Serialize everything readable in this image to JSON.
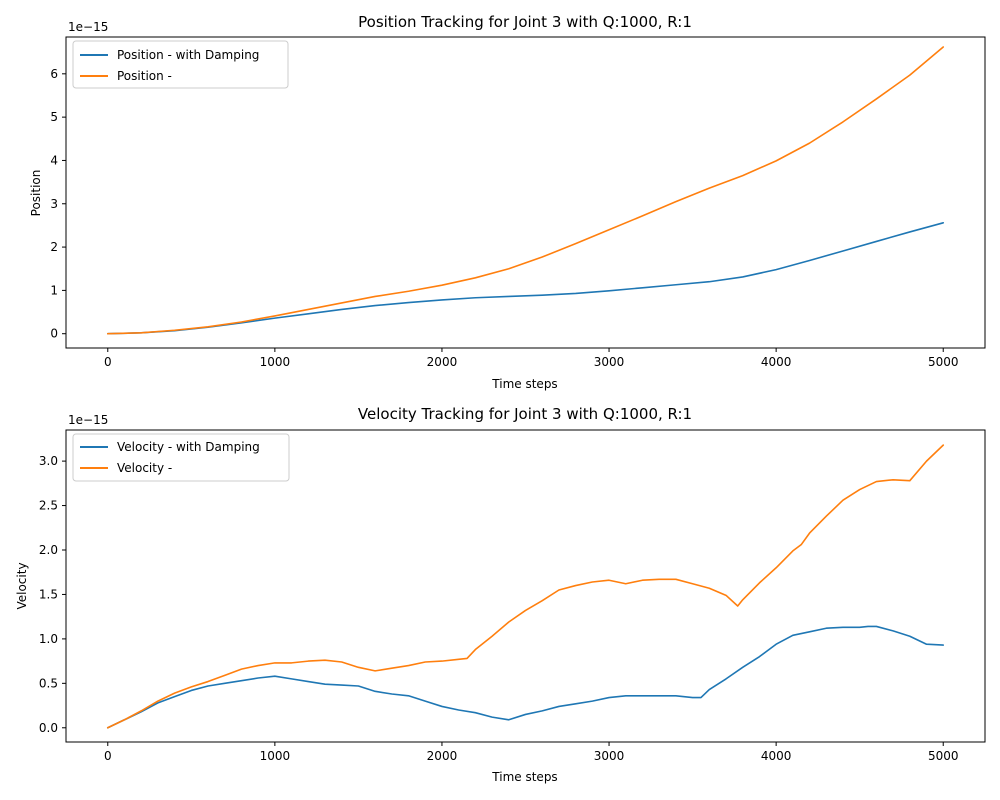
{
  "chart_data": [
    {
      "type": "line",
      "title": "Position Tracking for Joint 3 with Q:1000, R:1",
      "xlabel": "Time steps",
      "ylabel": "Position",
      "scale_label": "1e−15",
      "xlim": [
        -250,
        5250
      ],
      "ylim": [
        -0.33,
        6.85
      ],
      "xticks": [
        0,
        1000,
        2000,
        3000,
        4000,
        5000
      ],
      "yticks": [
        0,
        1,
        2,
        3,
        4,
        5,
        6
      ],
      "legend_position": "upper-left",
      "series": [
        {
          "name": "Position - with Damping",
          "color": "#1f77b4",
          "x": [
            0,
            200,
            400,
            600,
            800,
            1000,
            1200,
            1400,
            1600,
            1800,
            2000,
            2200,
            2400,
            2600,
            2800,
            3000,
            3200,
            3400,
            3600,
            3800,
            4000,
            4200,
            4400,
            4600,
            4800,
            5000
          ],
          "y": [
            0,
            0.02,
            0.07,
            0.15,
            0.25,
            0.36,
            0.46,
            0.56,
            0.65,
            0.72,
            0.78,
            0.83,
            0.86,
            0.89,
            0.93,
            0.99,
            1.06,
            1.13,
            1.2,
            1.31,
            1.48,
            1.69,
            1.91,
            2.13,
            2.35,
            2.56
          ]
        },
        {
          "name": "Position -",
          "color": "#ff7f0e",
          "x": [
            0,
            200,
            400,
            600,
            800,
            1000,
            1200,
            1400,
            1600,
            1800,
            2000,
            2200,
            2400,
            2600,
            2800,
            3000,
            3200,
            3400,
            3600,
            3800,
            4000,
            4200,
            4400,
            4600,
            4800,
            5000
          ],
          "y": [
            0,
            0.02,
            0.08,
            0.16,
            0.27,
            0.41,
            0.56,
            0.71,
            0.86,
            0.98,
            1.12,
            1.29,
            1.5,
            1.77,
            2.08,
            2.4,
            2.72,
            3.05,
            3.36,
            3.65,
            3.99,
            4.4,
            4.89,
            5.42,
            5.97,
            6.62
          ]
        }
      ]
    },
    {
      "type": "line",
      "title": "Velocity Tracking for Joint 3 with Q:1000, R:1",
      "xlabel": "Time steps",
      "ylabel": "Velocity",
      "scale_label": "1e−15",
      "xlim": [
        -250,
        5250
      ],
      "ylim": [
        -0.16,
        3.35
      ],
      "xticks": [
        0,
        1000,
        2000,
        3000,
        4000,
        5000
      ],
      "yticks": [
        0,
        0.5,
        1.0,
        1.5,
        2.0,
        2.5,
        3.0
      ],
      "ytick_labels": [
        "0.0",
        "0.5",
        "1.0",
        "1.5",
        "2.0",
        "2.5",
        "3.0"
      ],
      "legend_position": "upper-left",
      "series": [
        {
          "name": "Velocity - with Damping",
          "color": "#1f77b4",
          "x": [
            0,
            100,
            200,
            300,
            400,
            500,
            600,
            700,
            800,
            900,
            1000,
            1100,
            1200,
            1300,
            1400,
            1500,
            1600,
            1700,
            1800,
            1900,
            2000,
            2100,
            2200,
            2300,
            2400,
            2500,
            2600,
            2700,
            2800,
            2900,
            3000,
            3100,
            3200,
            3300,
            3400,
            3500,
            3550,
            3600,
            3700,
            3800,
            3900,
            4000,
            4100,
            4200,
            4300,
            4400,
            4500,
            4550,
            4600,
            4700,
            4800,
            4900,
            5000
          ],
          "y": [
            0,
            0.09,
            0.18,
            0.28,
            0.35,
            0.42,
            0.47,
            0.5,
            0.53,
            0.56,
            0.58,
            0.55,
            0.52,
            0.49,
            0.48,
            0.47,
            0.41,
            0.38,
            0.36,
            0.3,
            0.24,
            0.2,
            0.17,
            0.12,
            0.09,
            0.15,
            0.19,
            0.24,
            0.27,
            0.3,
            0.34,
            0.36,
            0.36,
            0.36,
            0.36,
            0.34,
            0.34,
            0.43,
            0.55,
            0.68,
            0.8,
            0.94,
            1.04,
            1.08,
            1.12,
            1.13,
            1.13,
            1.14,
            1.14,
            1.09,
            1.03,
            0.94,
            0.93
          ]
        },
        {
          "name": "Velocity -",
          "color": "#ff7f0e",
          "x": [
            0,
            100,
            200,
            300,
            400,
            500,
            600,
            700,
            800,
            900,
            1000,
            1100,
            1200,
            1300,
            1400,
            1500,
            1600,
            1700,
            1800,
            1900,
            2000,
            2100,
            2150,
            2200,
            2300,
            2400,
            2500,
            2600,
            2700,
            2800,
            2900,
            3000,
            3100,
            3200,
            3300,
            3400,
            3500,
            3600,
            3700,
            3770,
            3800,
            3900,
            4000,
            4100,
            4150,
            4200,
            4300,
            4400,
            4500,
            4600,
            4700,
            4800,
            4900,
            5000
          ],
          "y": [
            0,
            0.09,
            0.19,
            0.3,
            0.39,
            0.46,
            0.52,
            0.59,
            0.66,
            0.7,
            0.73,
            0.73,
            0.75,
            0.76,
            0.74,
            0.68,
            0.64,
            0.67,
            0.7,
            0.74,
            0.75,
            0.77,
            0.78,
            0.88,
            1.03,
            1.19,
            1.32,
            1.43,
            1.55,
            1.6,
            1.64,
            1.66,
            1.62,
            1.66,
            1.67,
            1.67,
            1.62,
            1.57,
            1.49,
            1.37,
            1.44,
            1.63,
            1.8,
            1.99,
            2.06,
            2.19,
            2.38,
            2.56,
            2.68,
            2.77,
            2.79,
            2.78,
            3.0,
            3.18
          ]
        }
      ]
    }
  ]
}
